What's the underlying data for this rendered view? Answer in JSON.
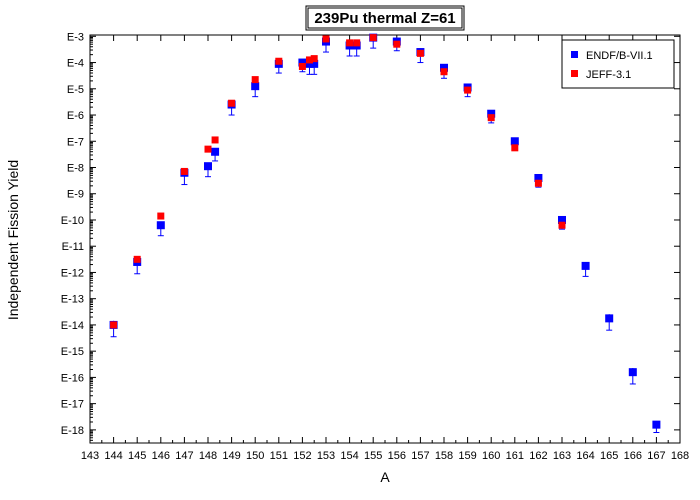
{
  "chart_data": {
    "type": "scatter",
    "title": "239Pu thermal Z=61",
    "xlabel": "A",
    "ylabel": "Independent Fission Yield",
    "xlim": [
      143,
      168
    ],
    "x_ticks": [
      "143",
      "144",
      "145",
      "146",
      "147",
      "148",
      "149",
      "150",
      "151",
      "152",
      "153",
      "154",
      "155",
      "156",
      "157",
      "158",
      "159",
      "160",
      "161",
      "162",
      "163",
      "164",
      "165",
      "166",
      "167",
      "168"
    ],
    "y_scale": "log",
    "ylim_exponent": [
      -18.5,
      -2.95
    ],
    "y_ticks": [
      "E-3",
      "E-4",
      "E-5",
      "E-6",
      "E-7",
      "E-8",
      "E-9",
      "E-10",
      "E-11",
      "E-12",
      "E-13",
      "E-14",
      "E-15",
      "E-16",
      "E-17",
      "E-18"
    ],
    "legend_position": "top-right",
    "series": [
      {
        "name": "ENDF/B-VII.1",
        "color": "#0000ff",
        "marker": "square",
        "points": [
          {
            "x": 144,
            "log10_y": -14.0,
            "err": 0.45
          },
          {
            "x": 145,
            "log10_y": -11.6,
            "err": 0.45
          },
          {
            "x": 146,
            "log10_y": -10.2,
            "err": 0.4
          },
          {
            "x": 147,
            "log10_y": -8.2,
            "err": 0.45
          },
          {
            "x": 148,
            "log10_y": -7.95,
            "err": 0.4
          },
          {
            "x": 148.3,
            "log10_y": -7.4,
            "err": 0.35
          },
          {
            "x": 149,
            "log10_y": -5.6,
            "err": 0.4
          },
          {
            "x": 150,
            "log10_y": -4.9,
            "err": 0.4
          },
          {
            "x": 151,
            "log10_y": -4.05,
            "err": 0.35
          },
          {
            "x": 152,
            "log10_y": -4.0,
            "err": 0.35
          },
          {
            "x": 152.3,
            "log10_y": -4.05,
            "err": 0.4
          },
          {
            "x": 152.5,
            "log10_y": -4.05,
            "err": 0.4
          },
          {
            "x": 153,
            "log10_y": -3.2,
            "err": 0.4
          },
          {
            "x": 154,
            "log10_y": -3.35,
            "err": 0.4
          },
          {
            "x": 154.3,
            "log10_y": -3.35,
            "err": 0.4
          },
          {
            "x": 155,
            "log10_y": -3.05,
            "err": 0.4
          },
          {
            "x": 156,
            "log10_y": -3.2,
            "err": 0.35
          },
          {
            "x": 157,
            "log10_y": -3.6,
            "err": 0.4
          },
          {
            "x": 158,
            "log10_y": -4.2,
            "err": 0.4
          },
          {
            "x": 159,
            "log10_y": -4.95,
            "err": 0.35
          },
          {
            "x": 160,
            "log10_y": -5.95,
            "err": 0.35
          },
          {
            "x": 161,
            "log10_y": -7.0,
            "err": 0.35
          },
          {
            "x": 162,
            "log10_y": -8.4,
            "err": 0.35
          },
          {
            "x": 163,
            "log10_y": -10.0,
            "err": 0.35
          },
          {
            "x": 164,
            "log10_y": -11.75,
            "err": 0.4
          },
          {
            "x": 165,
            "log10_y": -13.75,
            "err": 0.45
          },
          {
            "x": 166,
            "log10_y": -15.8,
            "err": 0.45
          },
          {
            "x": 167,
            "log10_y": -17.8,
            "err": 0.3
          }
        ]
      },
      {
        "name": "JEFF-3.1",
        "color": "#ff0000",
        "marker": "square",
        "points": [
          {
            "x": 144,
            "log10_y": -14.0
          },
          {
            "x": 145,
            "log10_y": -11.5
          },
          {
            "x": 146,
            "log10_y": -9.85
          },
          {
            "x": 147,
            "log10_y": -8.15
          },
          {
            "x": 148,
            "log10_y": -7.3
          },
          {
            "x": 148.3,
            "log10_y": -6.95
          },
          {
            "x": 149,
            "log10_y": -5.55
          },
          {
            "x": 150,
            "log10_y": -4.65
          },
          {
            "x": 151,
            "log10_y": -3.95
          },
          {
            "x": 152,
            "log10_y": -4.15
          },
          {
            "x": 152.3,
            "log10_y": -3.9
          },
          {
            "x": 152.5,
            "log10_y": -3.85
          },
          {
            "x": 153,
            "log10_y": -3.1
          },
          {
            "x": 154,
            "log10_y": -3.25
          },
          {
            "x": 154.3,
            "log10_y": -3.25
          },
          {
            "x": 155,
            "log10_y": -3.05
          },
          {
            "x": 156,
            "log10_y": -3.3
          },
          {
            "x": 157,
            "log10_y": -3.65
          },
          {
            "x": 158,
            "log10_y": -4.35
          },
          {
            "x": 159,
            "log10_y": -5.05
          },
          {
            "x": 160,
            "log10_y": -6.1
          },
          {
            "x": 161,
            "log10_y": -7.25
          },
          {
            "x": 162,
            "log10_y": -8.6
          },
          {
            "x": 163,
            "log10_y": -10.2
          }
        ]
      }
    ]
  }
}
